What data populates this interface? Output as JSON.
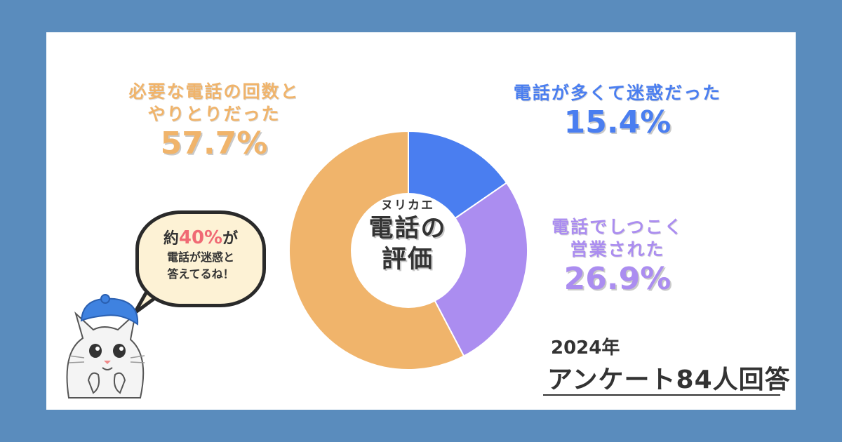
{
  "center": {
    "small": "ヌリカエ",
    "line1": "電話の",
    "line2": "評価"
  },
  "bubble": {
    "prefix": "約",
    "highlight": "40%",
    "suffix": "が",
    "line2": "電話が迷惑と",
    "line3": "答えてるね！"
  },
  "footer": {
    "year": "2024年",
    "survey": "アンケート84人回答"
  },
  "colors": {
    "background": "#5a8cbd",
    "orange": "#f0b46b",
    "blue": "#4a7ef0",
    "purple": "#ab8df0",
    "bubble_red": "#f06a74"
  },
  "chart_data": {
    "type": "pie",
    "donut": true,
    "slices": [
      {
        "label_lines": [
          "電話が多くて迷惑だった"
        ],
        "value_label": "15.4%",
        "value": 15.4,
        "color": "#4a7ef0"
      },
      {
        "label_lines": [
          "電話でしつこく",
          "営業された"
        ],
        "value_label": "26.9%",
        "value": 26.9,
        "color": "#ab8df0"
      },
      {
        "label_lines": [
          "必要な電話の回数と",
          "やりとりだった"
        ],
        "value_label": "57.7%",
        "value": 57.7,
        "color": "#f0b46b"
      }
    ]
  }
}
